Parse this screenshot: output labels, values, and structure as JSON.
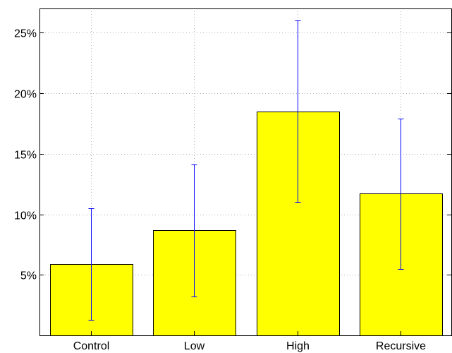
{
  "chart_data": {
    "type": "bar",
    "categories": [
      "Control",
      "Low",
      "High",
      "Recursive"
    ],
    "values": [
      5.9,
      8.7,
      18.5,
      11.7
    ],
    "error_low": [
      1.3,
      3.2,
      11.0,
      5.5
    ],
    "error_high": [
      10.5,
      14.1,
      26.0,
      17.9
    ],
    "ylim": [
      0,
      27
    ],
    "yticks": [
      5,
      10,
      15,
      20,
      25
    ],
    "ytick_labels": [
      "5%",
      "10%",
      "15%",
      "20%",
      "25%"
    ],
    "grid": true,
    "colors": {
      "bar": "#ffff00",
      "error_bar": "#0000ff",
      "axis": "#000000",
      "grid": "#b0b0b0"
    }
  }
}
